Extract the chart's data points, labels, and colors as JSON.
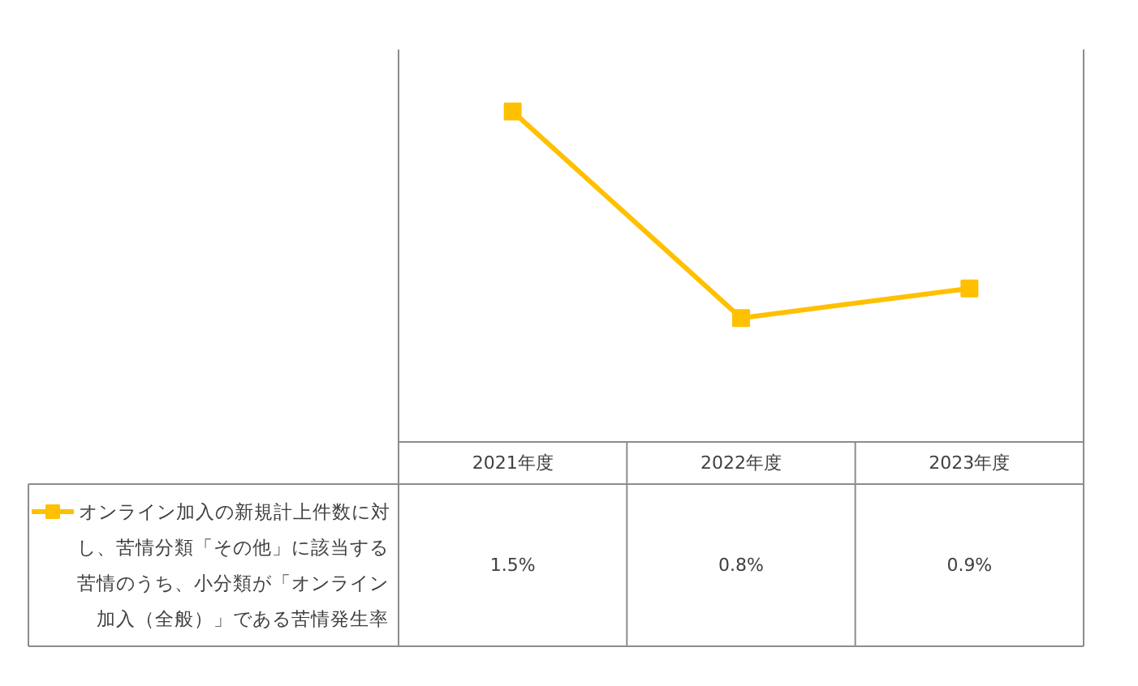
{
  "chart_data": {
    "type": "line",
    "categories": [
      "2021年度",
      "2022年度",
      "2023年度"
    ],
    "series": [
      {
        "name": "オンライン加入の新規計上件数に対し、苦情分類「その他」に該当する苦情のうち、小分類が「オンライン加入（全般）」である苦情発生率",
        "color": "#ffc000",
        "values": [
          1.5,
          0.8,
          0.9
        ],
        "value_labels": [
          "1.5%",
          "0.8%",
          "0.9%"
        ]
      }
    ],
    "marker": "square",
    "line_style": "solid",
    "legend": "bottom left"
  }
}
